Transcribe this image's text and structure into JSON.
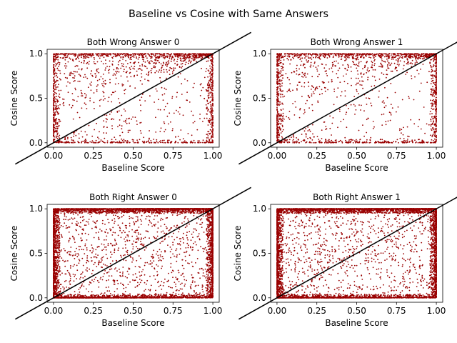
{
  "figure": {
    "suptitle": "Baseline vs Cosine with Same Answers",
    "point_color": "#990000",
    "diagonal_color": "#000000"
  },
  "chart_data": [
    {
      "type": "scatter",
      "title": "Both Wrong Answer 0",
      "xlabel": "Baseline Score",
      "ylabel": "Cosine Score",
      "xlim": [
        -0.04,
        1.04
      ],
      "ylim": [
        -0.05,
        1.05
      ],
      "xticks": [
        "0.00",
        "0.25",
        "0.50",
        "0.75",
        "1.00"
      ],
      "yticks": [
        "0.0",
        "0.5",
        "1.0"
      ],
      "reference_line": "y = x",
      "grid": false,
      "point_count": 2000,
      "density": "sparse; clusters along y=1.0 and near x=0 and x=1, more points above the diagonal"
    },
    {
      "type": "scatter",
      "title": "Both Wrong Answer 1",
      "xlabel": "Baseline Score",
      "ylabel": "Cosine Score",
      "xlim": [
        -0.04,
        1.04
      ],
      "ylim": [
        -0.05,
        1.05
      ],
      "xticks": [
        "0.00",
        "0.25",
        "0.50",
        "0.75",
        "1.00"
      ],
      "yticks": [
        "0.0",
        "0.5",
        "1.0"
      ],
      "reference_line": "y = x",
      "grid": false,
      "point_count": 2000,
      "density": "sparse; clusters along y=1.0 and near x=0 and x=1"
    },
    {
      "type": "scatter",
      "title": "Both Right Answer 0",
      "xlabel": "Baseline Score",
      "ylabel": "Cosine Score",
      "xlim": [
        -0.04,
        1.04
      ],
      "ylim": [
        -0.05,
        1.05
      ],
      "xticks": [
        "0.00",
        "0.25",
        "0.50",
        "0.75",
        "1.00"
      ],
      "yticks": [
        "0.0",
        "0.5",
        "1.0"
      ],
      "reference_line": "y = x",
      "grid": false,
      "point_count": 6000,
      "density": "dense; saturated at y=1.0, y=0.0, x=0 and x=1"
    },
    {
      "type": "scatter",
      "title": "Both Right Answer 1",
      "xlabel": "Baseline Score",
      "ylabel": "Cosine Score",
      "xlim": [
        -0.04,
        1.04
      ],
      "ylim": [
        -0.05,
        1.05
      ],
      "xticks": [
        "0.00",
        "0.25",
        "0.50",
        "0.75",
        "1.00"
      ],
      "yticks": [
        "0.0",
        "0.5",
        "1.0"
      ],
      "reference_line": "y = x",
      "grid": false,
      "point_count": 6000,
      "density": "dense; saturated at y=1.0, y=0.0, x=0 and x=1"
    }
  ]
}
